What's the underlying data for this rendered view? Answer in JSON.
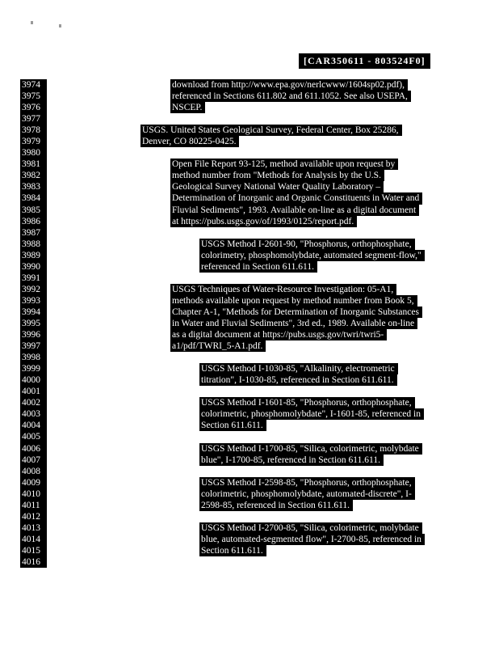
{
  "stamp": {
    "text": "[CAR350611 - 803524F0]"
  },
  "colors": {
    "highlight_bg": "#000000",
    "highlight_fg": "#ffffff",
    "page_bg": "#ffffff"
  },
  "document": {
    "lines": [
      {
        "n": "3974",
        "text": "download from http://www.epa.gov/nerlcwww/1604sp02.pdf),",
        "indent": 2
      },
      {
        "n": "3975",
        "text": "referenced in Sections 611.802 and 611.1052. See also USEPA,",
        "indent": 2
      },
      {
        "n": "3976",
        "text": "NSCEP.",
        "indent": 2
      },
      {
        "n": "3977"
      },
      {
        "n": "3978",
        "text": "USGS.  United States Geological Survey, Federal Center, Box 25286,",
        "indent": 1
      },
      {
        "n": "3979",
        "text": "Denver, CO 80225-0425.",
        "indent": 1
      },
      {
        "n": "3980"
      },
      {
        "n": "3981",
        "text": "Open File Report 93-125, method available upon request by",
        "indent": 2
      },
      {
        "n": "3982",
        "text": "method number from \"Methods for Analysis by the U.S.",
        "indent": 2
      },
      {
        "n": "3983",
        "text": "Geological Survey National Water Quality Laboratory –",
        "indent": 2
      },
      {
        "n": "3984",
        "text": "Determination of Inorganic and Organic Constituents in Water and",
        "indent": 2
      },
      {
        "n": "3985",
        "text": "Fluvial Sediments\", 1993.  Available on-line as a digital document",
        "indent": 2
      },
      {
        "n": "3986",
        "text": "at https://pubs.usgs.gov/of/1993/0125/report.pdf.",
        "indent": 2
      },
      {
        "n": "3987"
      },
      {
        "n": "3988",
        "text": "USGS Method I-2601-90, \"Phosphorus, orthophosphate,",
        "indent": 3
      },
      {
        "n": "3989",
        "text": "colorimetry, phosphomolybdate, automated segment-flow,\"",
        "indent": 3
      },
      {
        "n": "3990",
        "text": "referenced in Section 611.611.",
        "indent": 3
      },
      {
        "n": "3991"
      },
      {
        "n": "3992",
        "text": "USGS Techniques of Water-Resource Investigation:  05-A1,",
        "indent": 2
      },
      {
        "n": "3993",
        "text": "methods available upon request by method number from Book 5,",
        "indent": 2
      },
      {
        "n": "3994",
        "text": "Chapter A-1, \"Methods for Determination of Inorganic Substances",
        "indent": 2
      },
      {
        "n": "3995",
        "text": "in Water and Fluvial Sediments\", 3rd ed., 1989. Available on-line",
        "indent": 2
      },
      {
        "n": "3996",
        "text": "as a digital document at https://pubs.usgs.gov/twri/twri5-",
        "indent": 2
      },
      {
        "n": "3997",
        "text": "a1/pdf/TWRI_5-A1.pdf.",
        "indent": 2
      },
      {
        "n": "3998"
      },
      {
        "n": "3999",
        "text": "USGS Method I-1030-85, \"Alkalinity, electrometric",
        "indent": 3
      },
      {
        "n": "4000",
        "text": "titration\", I-1030-85, referenced in Section 611.611.",
        "indent": 3
      },
      {
        "n": "4001"
      },
      {
        "n": "4002",
        "text": "USGS Method I-1601-85, \"Phosphorus, orthophosphate,",
        "indent": 3
      },
      {
        "n": "4003",
        "text": "colorimetric, phosphomolybdate\", I-1601-85, referenced in",
        "indent": 3
      },
      {
        "n": "4004",
        "text": "Section 611.611.",
        "indent": 3
      },
      {
        "n": "4005"
      },
      {
        "n": "4006",
        "text": "USGS Method I-1700-85, \"Silica, colorimetric, molybdate",
        "indent": 3
      },
      {
        "n": "4007",
        "text": "blue\", I-1700-85, referenced in Section 611.611.",
        "indent": 3
      },
      {
        "n": "4008"
      },
      {
        "n": "4009",
        "text": "USGS Method I-2598-85, \"Phosphorus, orthophosphate,",
        "indent": 3
      },
      {
        "n": "4010",
        "text": "colorimetric, phosphomolybdate, automated-discrete\", I-",
        "indent": 3
      },
      {
        "n": "4011",
        "text": "2598-85, referenced in Section 611.611.",
        "indent": 3
      },
      {
        "n": "4012"
      },
      {
        "n": "4013",
        "text": "USGS Method I-2700-85, \"Silica, colorimetric, molybdate",
        "indent": 3
      },
      {
        "n": "4014",
        "text": "blue, automated-segmented flow\", I-2700-85, referenced in",
        "indent": 3
      },
      {
        "n": "4015",
        "text": "Section 611.611.",
        "indent": 3
      },
      {
        "n": "4016"
      }
    ]
  }
}
